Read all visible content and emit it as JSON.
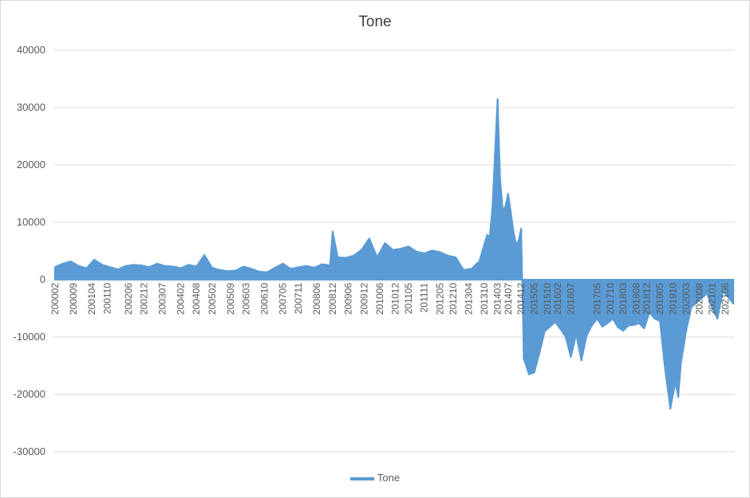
{
  "chart_data": {
    "type": "area",
    "title": "Tone",
    "xlabel": "",
    "ylabel": "",
    "ylim": [
      -30000,
      40000
    ],
    "yticks": [
      40000,
      30000,
      20000,
      10000,
      0,
      -10000,
      -20000,
      -30000
    ],
    "grid": "horizontal",
    "legend_position": "bottom",
    "series_color": "#5b9bd5",
    "x_tick_labels": [
      "200002",
      "200009",
      "200104",
      "200110",
      "200206",
      "200212",
      "200307",
      "200402",
      "200408",
      "200502",
      "200509",
      "200603",
      "200610",
      "200705",
      "200711",
      "200806",
      "200812",
      "200906",
      "200912",
      "201006",
      "201012",
      "201105",
      "201111",
      "201205",
      "201210",
      "201304",
      "201310",
      "201403",
      "201407",
      "201412",
      "201505",
      "201510",
      "201602",
      "201607",
      "201705",
      "201710",
      "201803",
      "201808",
      "201812",
      "201905",
      "201910",
      "202003",
      "202008",
      "202101",
      "202106"
    ],
    "series": [
      {
        "name": "Tone",
        "x": [
          "200002",
          "200005",
          "200008",
          "200011",
          "200102",
          "200105",
          "200108",
          "200111",
          "200202",
          "200205",
          "200208",
          "200211",
          "200302",
          "200305",
          "200308",
          "200311",
          "200402",
          "200405",
          "200408",
          "200411",
          "200502",
          "200505",
          "200508",
          "200511",
          "200602",
          "200605",
          "200608",
          "200611",
          "200702",
          "200705",
          "200708",
          "200711",
          "200802",
          "200805",
          "200808",
          "200811",
          "200812",
          "200902",
          "200905",
          "200908",
          "200911",
          "201002",
          "201005",
          "201008",
          "201011",
          "201102",
          "201105",
          "201108",
          "201111",
          "201202",
          "201205",
          "201208",
          "201211",
          "201302",
          "201305",
          "201308",
          "201311",
          "201312",
          "201401",
          "201402",
          "201403",
          "201404",
          "201405",
          "201406",
          "201407",
          "201408",
          "201409",
          "201410",
          "201411",
          "201412",
          "201501",
          "201503",
          "201505",
          "201507",
          "201509",
          "201511",
          "201601",
          "201603",
          "201605",
          "201607",
          "201609",
          "201611",
          "201701",
          "201703",
          "201705",
          "201707",
          "201709",
          "201711",
          "201801",
          "201803",
          "201805",
          "201807",
          "201809",
          "201811",
          "201901",
          "201903",
          "201905",
          "201907",
          "201909",
          "201910",
          "201911",
          "201912",
          "202001",
          "202003",
          "202005",
          "202007",
          "202009",
          "202011",
          "202101",
          "202103",
          "202105",
          "202107",
          "202109"
        ],
        "values": [
          2200,
          2800,
          3200,
          2400,
          2000,
          3500,
          2600,
          2200,
          1800,
          2400,
          2600,
          2500,
          2200,
          2800,
          2400,
          2300,
          2000,
          2600,
          2300,
          4300,
          2100,
          1700,
          1500,
          1600,
          2300,
          1900,
          1400,
          1300,
          2100,
          2800,
          1900,
          2200,
          2400,
          2100,
          2700,
          2500,
          8400,
          3900,
          3800,
          4200,
          5200,
          7200,
          3900,
          6400,
          5200,
          5400,
          5800,
          4900,
          4600,
          5100,
          4800,
          4200,
          3900,
          1700,
          1900,
          3200,
          7800,
          7500,
          12600,
          22000,
          31500,
          17400,
          12000,
          12800,
          15000,
          12000,
          8600,
          6300,
          6700,
          8900,
          -13800,
          -16500,
          -16200,
          -12800,
          -9000,
          -8200,
          -7400,
          -8600,
          -10000,
          -13500,
          -9500,
          -14100,
          -9800,
          -8000,
          -6800,
          -8200,
          -7600,
          -6800,
          -8300,
          -8900,
          -8000,
          -7900,
          -7600,
          -8500,
          -5700,
          -6800,
          -7200,
          -15800,
          -22500,
          -20000,
          -18000,
          -20500,
          -14600,
          -9000,
          -4800,
          -4000,
          -3200,
          -2400,
          -5000,
          -6800,
          -2000,
          -3000,
          -4200
        ]
      }
    ]
  }
}
